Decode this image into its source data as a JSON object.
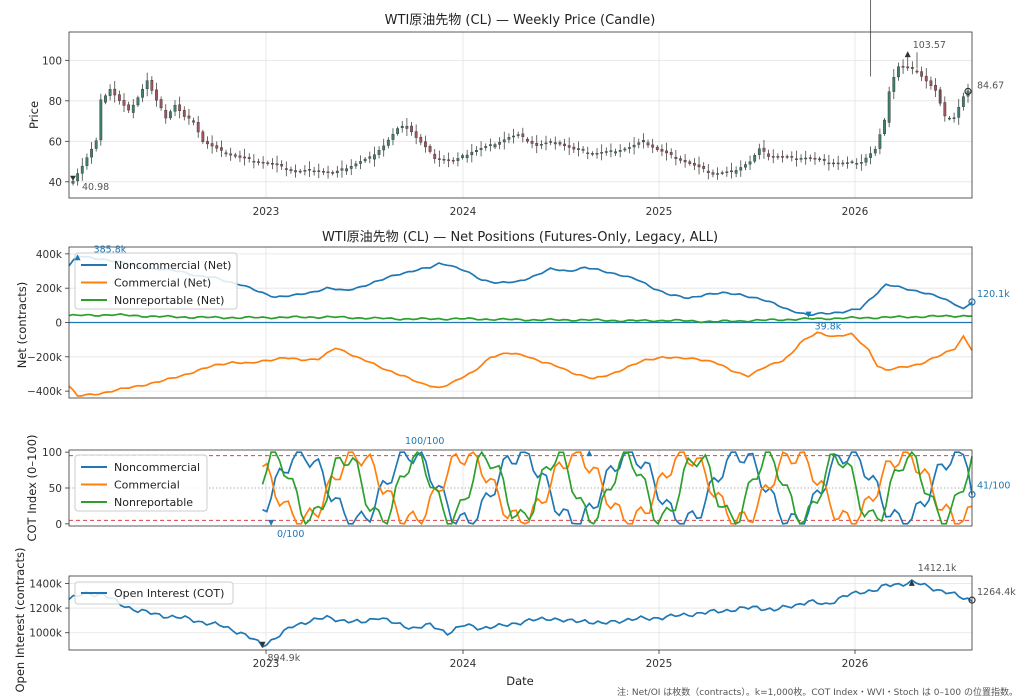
{
  "footnote": "注: Net/OI は枚数（contracts）。k=1,000枚。COT Index・WVI・Stoch は 0–100 の位置指数。",
  "xlabel": "Date",
  "colors": {
    "noncommercial": "#1f77b4",
    "commercial": "#ff7f0e",
    "nonreportable": "#2ca02c",
    "up_candle": "#3f7f6f",
    "down_candle": "#a3545c",
    "threshold": "#d62728"
  },
  "chart_data": [
    {
      "id": "price",
      "type": "candlestick",
      "title": "WTI原油先物 (CL) — Weekly Price (Candle)",
      "ylabel": "Price",
      "x_ticks": [
        "2023",
        "2024",
        "2025",
        "2026"
      ],
      "y_ticks": [
        "40",
        "60",
        "80",
        "100"
      ],
      "ylim": [
        32,
        114
      ],
      "grid": true,
      "annotations": {
        "min": "40.98",
        "max": "103.57",
        "last": "84.67"
      },
      "anchors": [
        [
          0,
          41
        ],
        [
          2,
          48
        ],
        [
          4,
          56
        ],
        [
          5,
          60
        ],
        [
          6,
          80
        ],
        [
          8,
          86
        ],
        [
          10,
          80
        ],
        [
          12,
          75
        ],
        [
          14,
          82
        ],
        [
          16,
          90
        ],
        [
          18,
          80
        ],
        [
          20,
          72
        ],
        [
          22,
          78
        ],
        [
          24,
          72
        ],
        [
          26,
          70
        ],
        [
          28,
          60
        ],
        [
          32,
          55
        ],
        [
          36,
          52
        ],
        [
          40,
          50
        ],
        [
          44,
          48
        ],
        [
          48,
          45
        ],
        [
          52,
          46
        ],
        [
          56,
          44
        ],
        [
          60,
          48
        ],
        [
          64,
          52
        ],
        [
          67,
          58
        ],
        [
          70,
          66
        ],
        [
          72,
          68
        ],
        [
          74,
          62
        ],
        [
          78,
          52
        ],
        [
          82,
          50
        ],
        [
          86,
          55
        ],
        [
          90,
          58
        ],
        [
          94,
          62
        ],
        [
          96,
          63
        ],
        [
          100,
          58
        ],
        [
          104,
          60
        ],
        [
          108,
          56
        ],
        [
          112,
          54
        ],
        [
          116,
          55
        ],
        [
          120,
          57
        ],
        [
          123,
          60
        ],
        [
          126,
          56
        ],
        [
          130,
          52
        ],
        [
          134,
          48
        ],
        [
          138,
          44
        ],
        [
          142,
          45
        ],
        [
          146,
          50
        ],
        [
          148,
          56
        ],
        [
          150,
          53
        ],
        [
          154,
          52
        ],
        [
          158,
          52
        ],
        [
          162,
          50
        ],
        [
          166,
          49
        ],
        [
          170,
          50
        ],
        [
          173,
          56
        ],
        [
          175,
          70
        ],
        [
          176,
          85
        ],
        [
          177,
          92
        ],
        [
          178,
          97
        ],
        [
          180,
          96
        ],
        [
          182,
          95
        ],
        [
          184,
          90
        ],
        [
          186,
          85
        ],
        [
          188,
          72
        ],
        [
          190,
          72
        ],
        [
          192,
          82
        ],
        [
          193,
          84.67
        ]
      ],
      "highlights": [
        [
          172,
          174,
          92,
          56
        ],
        [
          180,
          103.57,
          98,
          95
        ],
        [
          182,
          104,
          96,
          100
        ],
        [
          187,
          86,
          78,
          80
        ]
      ]
    },
    {
      "id": "net",
      "type": "line",
      "title": "WTI原油先物 (CL) — Net Positions (Futures-Only, Legacy, ALL)",
      "ylabel": "Net (contracts)",
      "y_ticks": [
        "−400k",
        "−200k",
        "0",
        "200k",
        "400k"
      ],
      "y_tick_values": [
        -400000,
        -200000,
        0,
        200000,
        400000
      ],
      "ylim": [
        -440000,
        440000
      ],
      "zero_line": true,
      "legend": "top-left",
      "annotations": {
        "max": "385.8k",
        "min_noncomm": "39.8k",
        "last": "120.1k"
      },
      "series": [
        {
          "name": "Noncommercial (Net)",
          "color_key": "noncommercial",
          "anchors": [
            [
              0,
              330
            ],
            [
              2,
              385.8
            ],
            [
              8,
              370
            ],
            [
              14,
              340
            ],
            [
              20,
              310
            ],
            [
              26,
              300
            ],
            [
              30,
              270
            ],
            [
              34,
              260
            ],
            [
              40,
              220
            ],
            [
              44,
              180
            ],
            [
              48,
              150
            ],
            [
              52,
              155
            ],
            [
              56,
              175
            ],
            [
              60,
              200
            ],
            [
              64,
              185
            ],
            [
              68,
              210
            ],
            [
              72,
              240
            ],
            [
              76,
              280
            ],
            [
              80,
              300
            ],
            [
              84,
              320
            ],
            [
              86,
              345
            ],
            [
              88,
              340
            ],
            [
              92,
              300
            ],
            [
              96,
              250
            ],
            [
              100,
              230
            ],
            [
              104,
              235
            ],
            [
              108,
              270
            ],
            [
              112,
              310
            ],
            [
              116,
              300
            ],
            [
              120,
              320
            ],
            [
              124,
              300
            ],
            [
              128,
              280
            ],
            [
              132,
              250
            ],
            [
              136,
              200
            ],
            [
              140,
              160
            ],
            [
              144,
              140
            ],
            [
              148,
              165
            ],
            [
              152,
              170
            ],
            [
              156,
              165
            ],
            [
              160,
              140
            ],
            [
              164,
              110
            ],
            [
              168,
              70
            ],
            [
              172,
              39.8
            ],
            [
              175,
              55
            ],
            [
              180,
              60
            ],
            [
              184,
              80
            ],
            [
              186,
              130
            ],
            [
              190,
              220
            ],
            [
              194,
              200
            ],
            [
              198,
              180
            ],
            [
              202,
              150
            ],
            [
              206,
              110
            ],
            [
              208,
              80
            ],
            [
              210,
              120.1
            ]
          ]
        },
        {
          "name": "Commercial (Net)",
          "color_key": "commercial",
          "anchors": [
            [
              0,
              -370
            ],
            [
              2,
              -430
            ],
            [
              8,
              -410
            ],
            [
              14,
              -380
            ],
            [
              18,
              -360
            ],
            [
              22,
              -340
            ],
            [
              26,
              -310
            ],
            [
              30,
              -280
            ],
            [
              34,
              -250
            ],
            [
              38,
              -230
            ],
            [
              42,
              -240
            ],
            [
              46,
              -220
            ],
            [
              50,
              -205
            ],
            [
              54,
              -220
            ],
            [
              58,
              -210
            ],
            [
              62,
              -150
            ],
            [
              66,
              -190
            ],
            [
              70,
              -230
            ],
            [
              72,
              -260
            ],
            [
              74,
              -280
            ],
            [
              78,
              -310
            ],
            [
              82,
              -360
            ],
            [
              86,
              -380
            ],
            [
              90,
              -340
            ],
            [
              94,
              -290
            ],
            [
              98,
              -200
            ],
            [
              102,
              -180
            ],
            [
              106,
              -190
            ],
            [
              110,
              -230
            ],
            [
              114,
              -260
            ],
            [
              118,
              -300
            ],
            [
              122,
              -330
            ],
            [
              126,
              -300
            ],
            [
              130,
              -260
            ],
            [
              134,
              -220
            ],
            [
              138,
              -200
            ],
            [
              142,
              -210
            ],
            [
              146,
              -210
            ],
            [
              150,
              -230
            ],
            [
              154,
              -280
            ],
            [
              158,
              -310
            ],
            [
              162,
              -260
            ],
            [
              166,
              -220
            ],
            [
              168,
              -180
            ],
            [
              170,
              -120
            ],
            [
              174,
              -60
            ],
            [
              178,
              -80
            ],
            [
              182,
              -70
            ],
            [
              186,
              -160
            ],
            [
              188,
              -250
            ],
            [
              190,
              -280
            ],
            [
              194,
              -260
            ],
            [
              198,
              -240
            ],
            [
              202,
              -200
            ],
            [
              206,
              -150
            ],
            [
              208,
              -80
            ],
            [
              210,
              -160
            ]
          ]
        },
        {
          "name": "Nonreportable (Net)",
          "color_key": "nonreportable",
          "anchors": [
            [
              0,
              40
            ],
            [
              10,
              45
            ],
            [
              20,
              35
            ],
            [
              30,
              30
            ],
            [
              40,
              28
            ],
            [
              50,
              30
            ],
            [
              60,
              32
            ],
            [
              70,
              25
            ],
            [
              80,
              20
            ],
            [
              90,
              22
            ],
            [
              100,
              18
            ],
            [
              110,
              15
            ],
            [
              120,
              15
            ],
            [
              130,
              10
            ],
            [
              140,
              12
            ],
            [
              150,
              5
            ],
            [
              160,
              12
            ],
            [
              170,
              20
            ],
            [
              180,
              25
            ],
            [
              190,
              30
            ],
            [
              200,
              35
            ],
            [
              210,
              40
            ]
          ]
        }
      ]
    },
    {
      "id": "cot",
      "type": "line",
      "ylabel": "COT Index (0–100)",
      "y_ticks": [
        "0",
        "50",
        "100"
      ],
      "ylim": [
        -3,
        103
      ],
      "thresholds": [
        5,
        95
      ],
      "midline": 50,
      "legend": "top-left",
      "annotations": {
        "max": "100/100",
        "min": "0/100",
        "last": "41/100"
      },
      "start_index": 45,
      "series": [
        {
          "name": "Noncommercial",
          "color_key": "noncommercial",
          "phase": 0.8,
          "amp": 48,
          "period": 14
        },
        {
          "name": "Commercial",
          "color_key": "commercial",
          "phase": 3.9,
          "amp": 46,
          "period": 14
        },
        {
          "name": "Nonreportable",
          "color_key": "nonreportable",
          "phase": 2.0,
          "amp": 44,
          "period": 9
        }
      ]
    },
    {
      "id": "oi",
      "type": "line",
      "ylabel": "Open Interest (contracts)",
      "x_ticks": [
        "2023",
        "2024",
        "2025",
        "2026"
      ],
      "y_ticks": [
        "1000k",
        "1200k",
        "1400k"
      ],
      "y_tick_values": [
        1000,
        1200,
        1400
      ],
      "ylim": [
        860,
        1460
      ],
      "legend": "top-left",
      "annotations": {
        "min": "894.9k",
        "max": "1412.1k",
        "last": "1264.4k"
      },
      "series": [
        {
          "name": "Open Interest (COT)",
          "color_key": "noncommercial",
          "anchors": [
            [
              0,
              1270
            ],
            [
              4,
              1320
            ],
            [
              8,
              1310
            ],
            [
              12,
              1230
            ],
            [
              16,
              1180
            ],
            [
              20,
              1150
            ],
            [
              24,
              1130
            ],
            [
              28,
              1110
            ],
            [
              32,
              1080
            ],
            [
              36,
              1050
            ],
            [
              40,
              1000
            ],
            [
              44,
              920
            ],
            [
              45,
              894.9
            ],
            [
              48,
              960
            ],
            [
              52,
              1050
            ],
            [
              56,
              1100
            ],
            [
              60,
              1120
            ],
            [
              64,
              1100
            ],
            [
              68,
              1080
            ],
            [
              72,
              1130
            ],
            [
              76,
              1070
            ],
            [
              80,
              1040
            ],
            [
              84,
              1060
            ],
            [
              88,
              1000
            ],
            [
              92,
              1060
            ],
            [
              96,
              1040
            ],
            [
              100,
              1050
            ],
            [
              104,
              1080
            ],
            [
              108,
              1100
            ],
            [
              112,
              1120
            ],
            [
              116,
              1090
            ],
            [
              120,
              1100
            ],
            [
              124,
              1070
            ],
            [
              128,
              1100
            ],
            [
              132,
              1110
            ],
            [
              136,
              1120
            ],
            [
              140,
              1130
            ],
            [
              144,
              1150
            ],
            [
              148,
              1160
            ],
            [
              152,
              1180
            ],
            [
              156,
              1190
            ],
            [
              160,
              1210
            ],
            [
              164,
              1180
            ],
            [
              168,
              1220
            ],
            [
              172,
              1250
            ],
            [
              176,
              1230
            ],
            [
              180,
              1290
            ],
            [
              184,
              1330
            ],
            [
              188,
              1350
            ],
            [
              190,
              1380
            ],
            [
              194,
              1400
            ],
            [
              196,
              1412.1
            ],
            [
              200,
              1370
            ],
            [
              204,
              1330
            ],
            [
              208,
              1280
            ],
            [
              210,
              1264.4
            ]
          ]
        }
      ]
    }
  ]
}
